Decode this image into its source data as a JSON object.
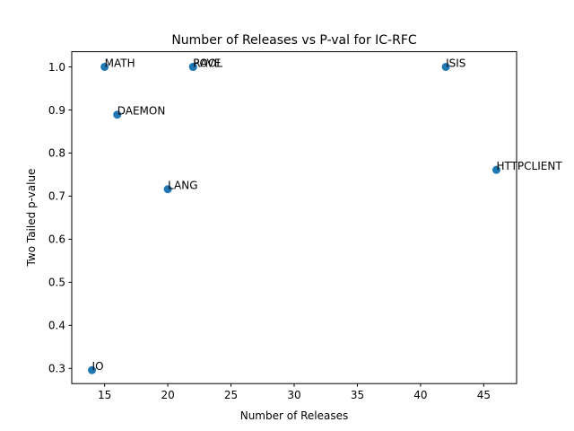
{
  "chart_data": {
    "type": "scatter",
    "title": "Number of Releases vs P-val for IC-RFC",
    "xlabel": "Number of Releases",
    "ylabel": "Two Tailed p-value",
    "xlim": [
      12.4,
      47.6
    ],
    "ylim": [
      0.2648,
      1.0352
    ],
    "xticks": [
      15,
      20,
      25,
      30,
      35,
      40,
      45
    ],
    "yticks": [
      0.3,
      0.4,
      0.5,
      0.6,
      0.7,
      0.8,
      0.9,
      1.0
    ],
    "xtick_labels": [
      "15",
      "20",
      "25",
      "30",
      "35",
      "40",
      "45"
    ],
    "ytick_labels": [
      "0.3",
      "0.4",
      "0.5",
      "0.6",
      "0.7",
      "0.8",
      "0.9",
      "1.0"
    ],
    "grid": false,
    "marker_color": "#1f77b4",
    "points": [
      {
        "label": "IO",
        "x": 14,
        "y": 0.296
      },
      {
        "label": "MATH",
        "x": 15,
        "y": 1.0
      },
      {
        "label": "DAEMON",
        "x": 16,
        "y": 0.889
      },
      {
        "label": "LANG",
        "x": 20,
        "y": 0.716
      },
      {
        "label": "POOL",
        "x": 22,
        "y": 1.0
      },
      {
        "label": "RAVE",
        "x": 22,
        "y": 1.0
      },
      {
        "label": "ISIS",
        "x": 42,
        "y": 1.0
      },
      {
        "label": "HTTPCLIENT",
        "x": 46,
        "y": 0.761
      }
    ]
  }
}
